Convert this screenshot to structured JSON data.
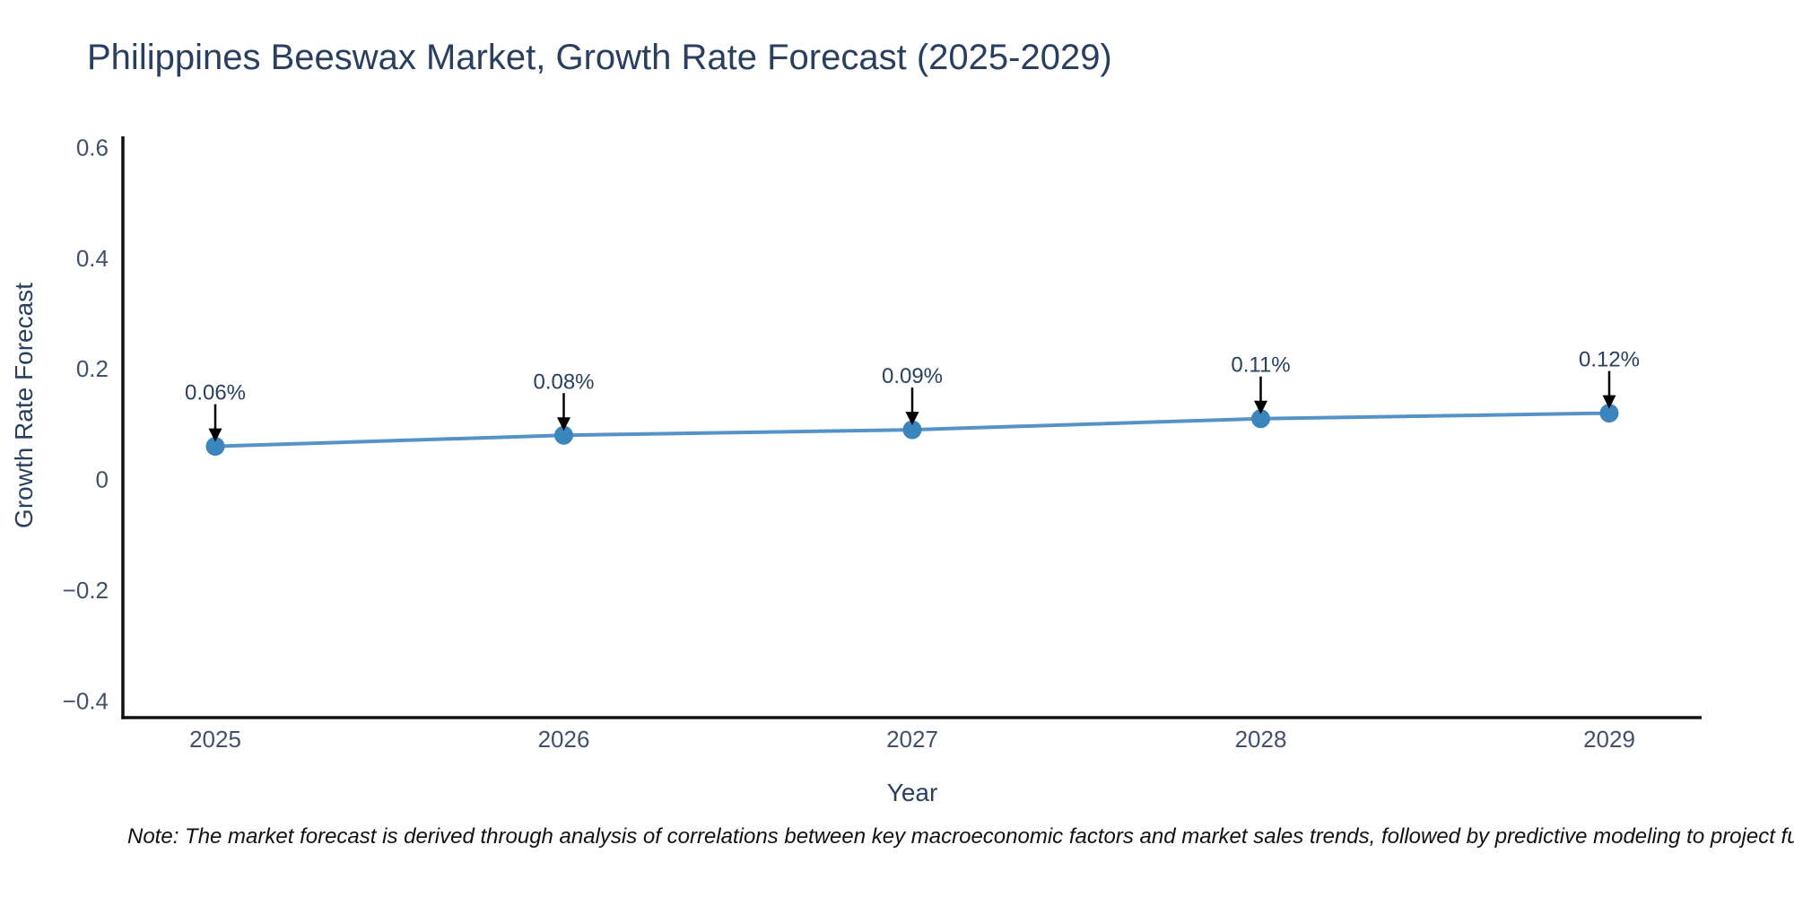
{
  "note": "Note: The market forecast is derived through analysis of correlations between key macroeconomic factors and market sales trends, followed by predictive modeling to project future sales",
  "chart_data": {
    "type": "line",
    "title": "Philippines Beeswax Market, Growth Rate Forecast (2025-2029)",
    "xlabel": "Year",
    "ylabel": "Growth Rate Forecast",
    "categories": [
      "2025",
      "2026",
      "2027",
      "2028",
      "2029"
    ],
    "values": [
      0.06,
      0.08,
      0.09,
      0.11,
      0.12
    ],
    "data_labels": [
      "0.06%",
      "0.08%",
      "0.09%",
      "0.11%",
      "0.12%"
    ],
    "yticks": [
      -0.4,
      -0.2,
      0,
      0.2,
      0.4,
      0.6
    ],
    "ylim": [
      -0.43,
      0.62
    ],
    "grid": false,
    "legend": "none",
    "colors": {
      "line": "#5592c6",
      "marker": "#3b85bd",
      "arrow": "#000000",
      "axis": "#101010",
      "title_text": "#2a3f5f",
      "tick_text": "#42506a",
      "label_text": "#2a3f5f"
    }
  }
}
